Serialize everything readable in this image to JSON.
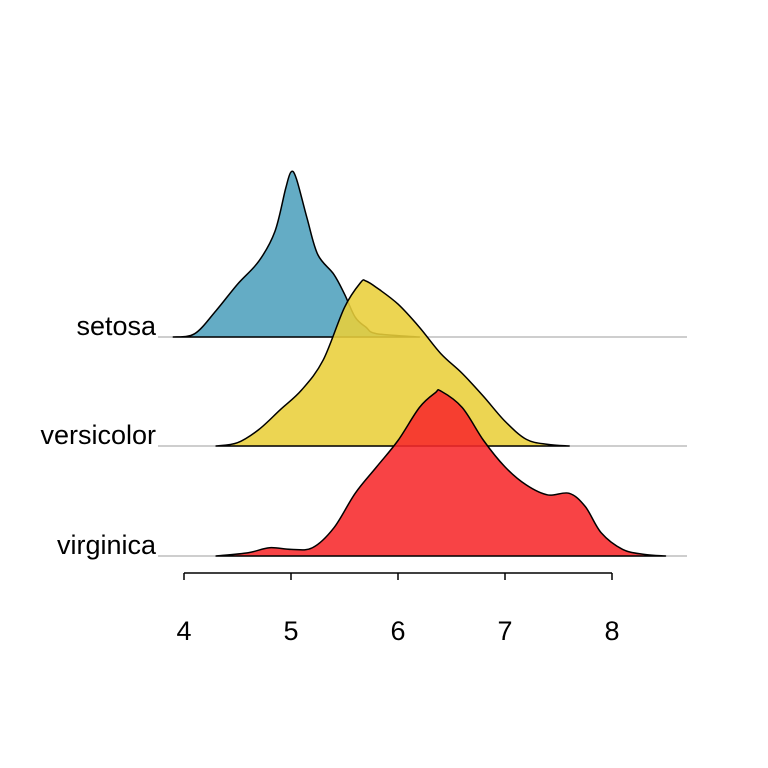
{
  "chart_data": {
    "type": "ridgeline",
    "title": "",
    "xlabel": "",
    "ylabel": "",
    "xlim": [
      3.95,
      8.7
    ],
    "xticks": [
      4,
      5,
      6,
      7,
      8
    ],
    "grid": false,
    "series": [
      {
        "name": "setosa",
        "color": "#4fa0bd",
        "points": [
          [
            3.9,
            0.0
          ],
          [
            4.1,
            0.02
          ],
          [
            4.3,
            0.16
          ],
          [
            4.5,
            0.32
          ],
          [
            4.7,
            0.46
          ],
          [
            4.85,
            0.64
          ],
          [
            4.95,
            0.9
          ],
          [
            5.0,
            1.0
          ],
          [
            5.05,
            0.96
          ],
          [
            5.15,
            0.72
          ],
          [
            5.25,
            0.5
          ],
          [
            5.4,
            0.38
          ],
          [
            5.5,
            0.26
          ],
          [
            5.6,
            0.12
          ],
          [
            5.7,
            0.06
          ],
          [
            5.8,
            0.02
          ],
          [
            6.2,
            0.0
          ]
        ]
      },
      {
        "name": "versicolor",
        "color": "#e9cf3a",
        "points": [
          [
            4.3,
            0.0
          ],
          [
            4.5,
            0.02
          ],
          [
            4.7,
            0.1
          ],
          [
            4.9,
            0.22
          ],
          [
            5.1,
            0.34
          ],
          [
            5.3,
            0.52
          ],
          [
            5.5,
            0.84
          ],
          [
            5.65,
            0.99
          ],
          [
            5.7,
            1.0
          ],
          [
            5.8,
            0.96
          ],
          [
            6.0,
            0.86
          ],
          [
            6.2,
            0.72
          ],
          [
            6.4,
            0.56
          ],
          [
            6.6,
            0.44
          ],
          [
            6.8,
            0.3
          ],
          [
            7.0,
            0.15
          ],
          [
            7.2,
            0.04
          ],
          [
            7.4,
            0.01
          ],
          [
            7.6,
            0.0
          ]
        ]
      },
      {
        "name": "virginica",
        "color": "#f7292b",
        "points": [
          [
            4.3,
            0.0
          ],
          [
            4.6,
            0.02
          ],
          [
            4.8,
            0.05
          ],
          [
            5.0,
            0.04
          ],
          [
            5.2,
            0.05
          ],
          [
            5.4,
            0.17
          ],
          [
            5.6,
            0.38
          ],
          [
            5.8,
            0.54
          ],
          [
            6.0,
            0.7
          ],
          [
            6.2,
            0.9
          ],
          [
            6.35,
            0.99
          ],
          [
            6.4,
            1.0
          ],
          [
            6.6,
            0.9
          ],
          [
            6.8,
            0.7
          ],
          [
            7.0,
            0.54
          ],
          [
            7.2,
            0.43
          ],
          [
            7.4,
            0.37
          ],
          [
            7.6,
            0.38
          ],
          [
            7.75,
            0.3
          ],
          [
            7.9,
            0.14
          ],
          [
            8.1,
            0.04
          ],
          [
            8.3,
            0.01
          ],
          [
            8.5,
            0.0
          ]
        ]
      }
    ]
  }
}
